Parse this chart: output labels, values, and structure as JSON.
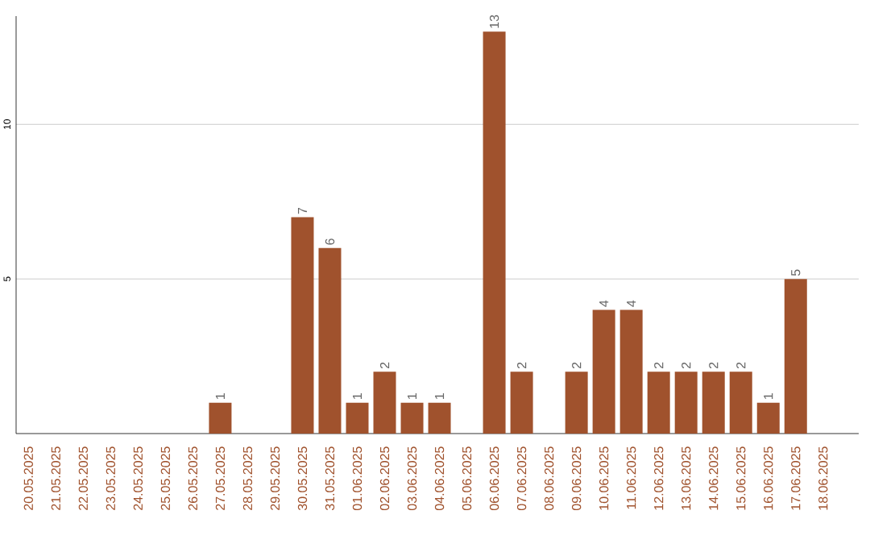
{
  "chart_data": {
    "type": "bar",
    "categories": [
      "20.05.2025",
      "21.05.2025",
      "22.05.2025",
      "23.05.2025",
      "24.05.2025",
      "25.05.2025",
      "26.05.2025",
      "27.05.2025",
      "28.05.2025",
      "29.05.2025",
      "30.05.2025",
      "31.05.2025",
      "01.06.2025",
      "02.06.2025",
      "03.06.2025",
      "04.06.2025",
      "05.06.2025",
      "06.06.2025",
      "07.06.2025",
      "08.06.2025",
      "09.06.2025",
      "10.06.2025",
      "11.06.2025",
      "12.06.2025",
      "13.06.2025",
      "14.06.2025",
      "15.06.2025",
      "16.06.2025",
      "17.06.2025",
      "18.06.2025"
    ],
    "values": [
      0,
      0,
      0,
      0,
      0,
      0,
      0,
      1,
      0,
      0,
      7,
      6,
      1,
      2,
      1,
      1,
      0,
      13,
      2,
      0,
      2,
      4,
      4,
      2,
      2,
      2,
      2,
      1,
      5,
      0
    ],
    "value_labels": [
      null,
      null,
      null,
      null,
      null,
      null,
      null,
      "1",
      null,
      null,
      "7",
      "6",
      "1",
      "2",
      "1",
      "1",
      null,
      "13",
      "2",
      null,
      "2",
      "4",
      "4",
      "2",
      "2",
      "2",
      "2",
      "1",
      "5",
      null
    ],
    "color": "#a0522d",
    "ylim": [
      0,
      13.5
    ],
    "yticks": [
      5,
      10
    ],
    "grid": "y"
  }
}
